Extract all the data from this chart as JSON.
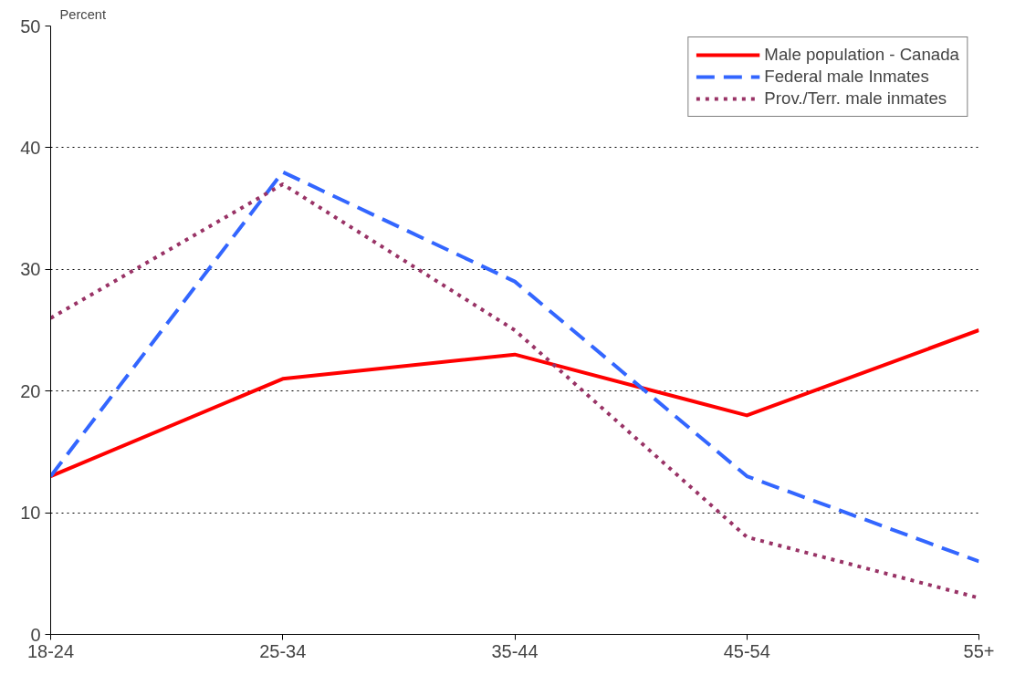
{
  "chart_data": {
    "type": "line",
    "ylabel": "Percent",
    "categories": [
      "18-24",
      "25-34",
      "35-44",
      "45-54",
      "55+"
    ],
    "series": [
      {
        "name": "Male population - Canada",
        "color": "#ff0000",
        "line_style": "solid",
        "values": [
          13,
          21,
          23,
          18,
          25
        ]
      },
      {
        "name": "Federal male Inmates",
        "color": "#3366ff",
        "line_style": "dashed",
        "values": [
          13,
          38,
          29,
          13,
          6
        ]
      },
      {
        "name": "Prov./Terr. male inmates",
        "color": "#993366",
        "line_style": "dotted",
        "values": [
          26,
          37,
          25,
          8,
          3
        ]
      }
    ],
    "ylim": [
      0,
      50
    ],
    "yticks": [
      0,
      10,
      20,
      30,
      40,
      50
    ],
    "grid": "y",
    "legend": "top right",
    "marker": "none"
  }
}
